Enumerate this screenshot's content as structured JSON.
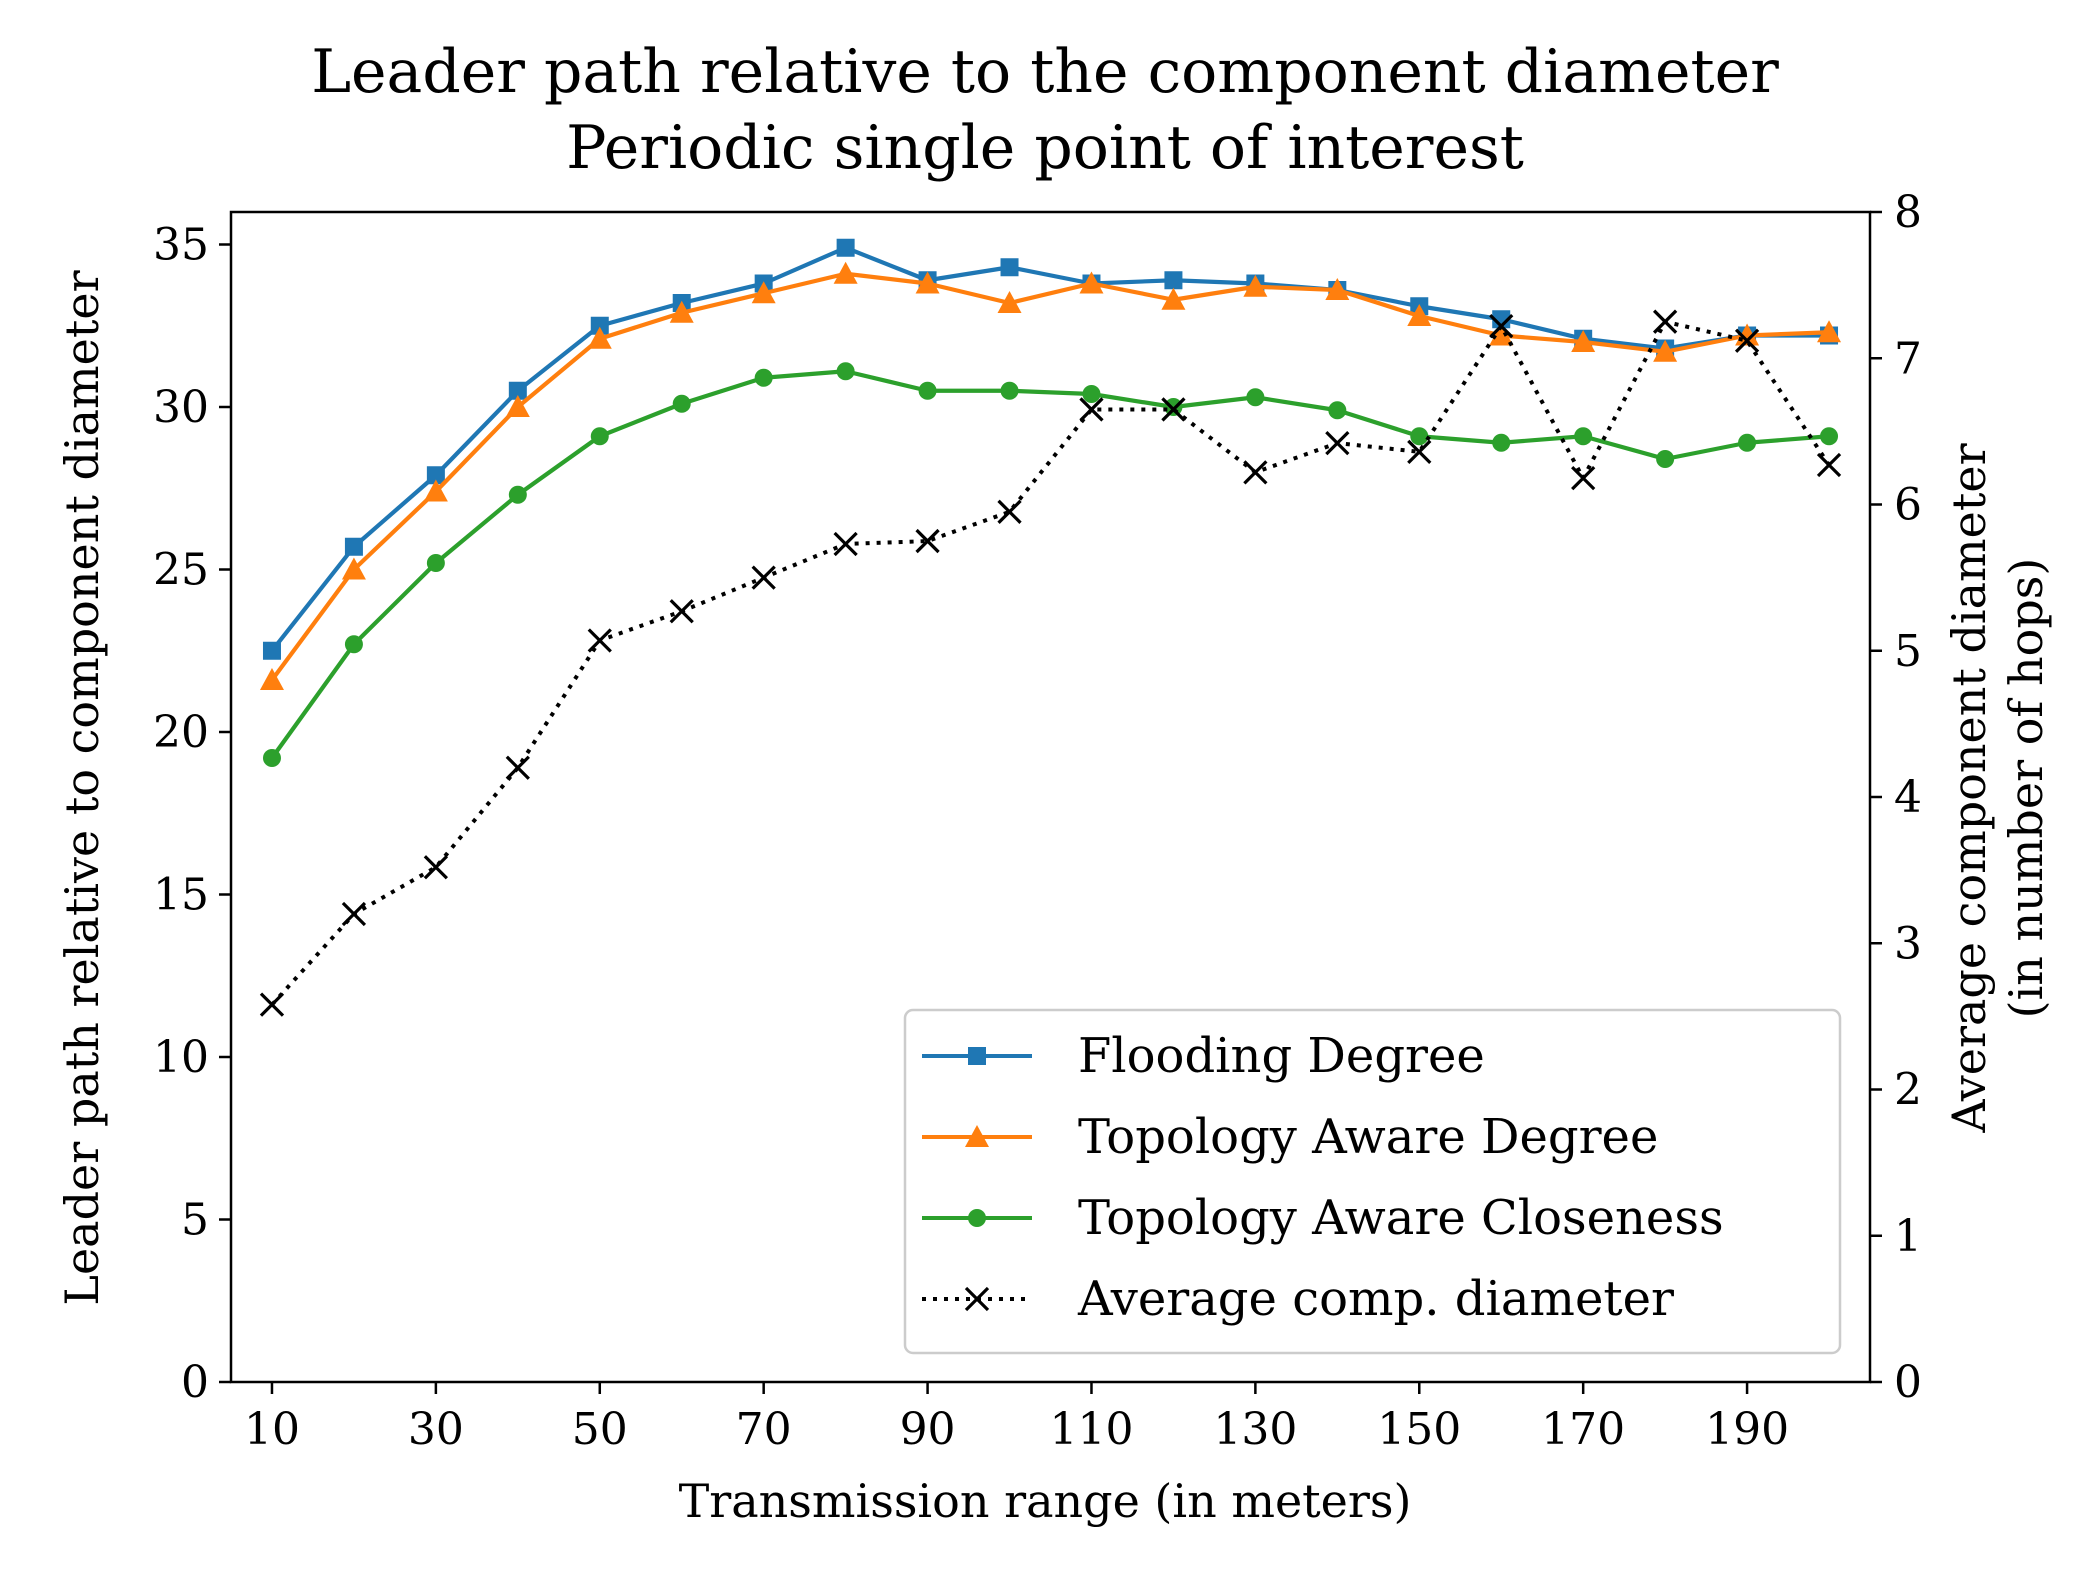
{
  "chart_data": {
    "type": "line",
    "title": "Leader path relative to the component diameter",
    "subtitle": "Periodic single point of interest",
    "xlabel": "Transmission range (in meters)",
    "ylabel": "Leader path relative to component diameter",
    "y2label": "Average component diameter",
    "y2label_line2": "(in number of hops)",
    "x": [
      10,
      20,
      30,
      40,
      50,
      60,
      70,
      80,
      90,
      100,
      110,
      120,
      130,
      140,
      150,
      160,
      170,
      180,
      190,
      200
    ],
    "xticks": [
      10,
      30,
      50,
      70,
      90,
      110,
      130,
      150,
      170,
      190
    ],
    "xlim": [
      5,
      205
    ],
    "ylim": [
      0,
      36
    ],
    "yticks": [
      0,
      5,
      10,
      15,
      20,
      25,
      30,
      35
    ],
    "y2lim": [
      0,
      8
    ],
    "y2ticks": [
      0,
      1,
      2,
      3,
      4,
      5,
      6,
      7,
      8
    ],
    "grid": false,
    "legend_position": "lower-right",
    "series": [
      {
        "name": "Flooding Degree",
        "axis": "left",
        "color": "#1f77b4",
        "marker": "square",
        "linestyle": "solid",
        "values": [
          22.5,
          25.7,
          27.9,
          30.5,
          32.5,
          33.2,
          33.8,
          34.9,
          33.9,
          34.3,
          33.8,
          33.9,
          33.8,
          33.6,
          33.1,
          32.7,
          32.1,
          31.8,
          32.2,
          32.2
        ]
      },
      {
        "name": "Topology Aware Degree",
        "axis": "left",
        "color": "#ff7f0e",
        "marker": "triangle",
        "linestyle": "solid",
        "values": [
          21.6,
          25.0,
          27.4,
          30.0,
          32.1,
          32.9,
          33.5,
          34.1,
          33.8,
          33.2,
          33.8,
          33.3,
          33.7,
          33.6,
          32.8,
          32.2,
          32.0,
          31.7,
          32.2,
          32.3
        ]
      },
      {
        "name": "Topology Aware Closeness",
        "axis": "left",
        "color": "#2ca02c",
        "marker": "circle",
        "linestyle": "solid",
        "values": [
          19.2,
          22.7,
          25.2,
          27.3,
          29.1,
          30.1,
          30.9,
          31.1,
          30.5,
          30.5,
          30.4,
          30.0,
          30.3,
          29.9,
          29.1,
          28.9,
          29.1,
          28.4,
          28.9,
          29.1
        ]
      },
      {
        "name": "Average comp. diameter",
        "axis": "right",
        "color": "#000000",
        "marker": "x",
        "linestyle": "dotted",
        "values": [
          2.58,
          3.2,
          3.52,
          4.2,
          5.07,
          5.27,
          5.5,
          5.73,
          5.75,
          5.95,
          6.65,
          6.65,
          6.22,
          6.42,
          6.36,
          7.22,
          6.18,
          7.25,
          7.12,
          6.27
        ]
      }
    ]
  }
}
